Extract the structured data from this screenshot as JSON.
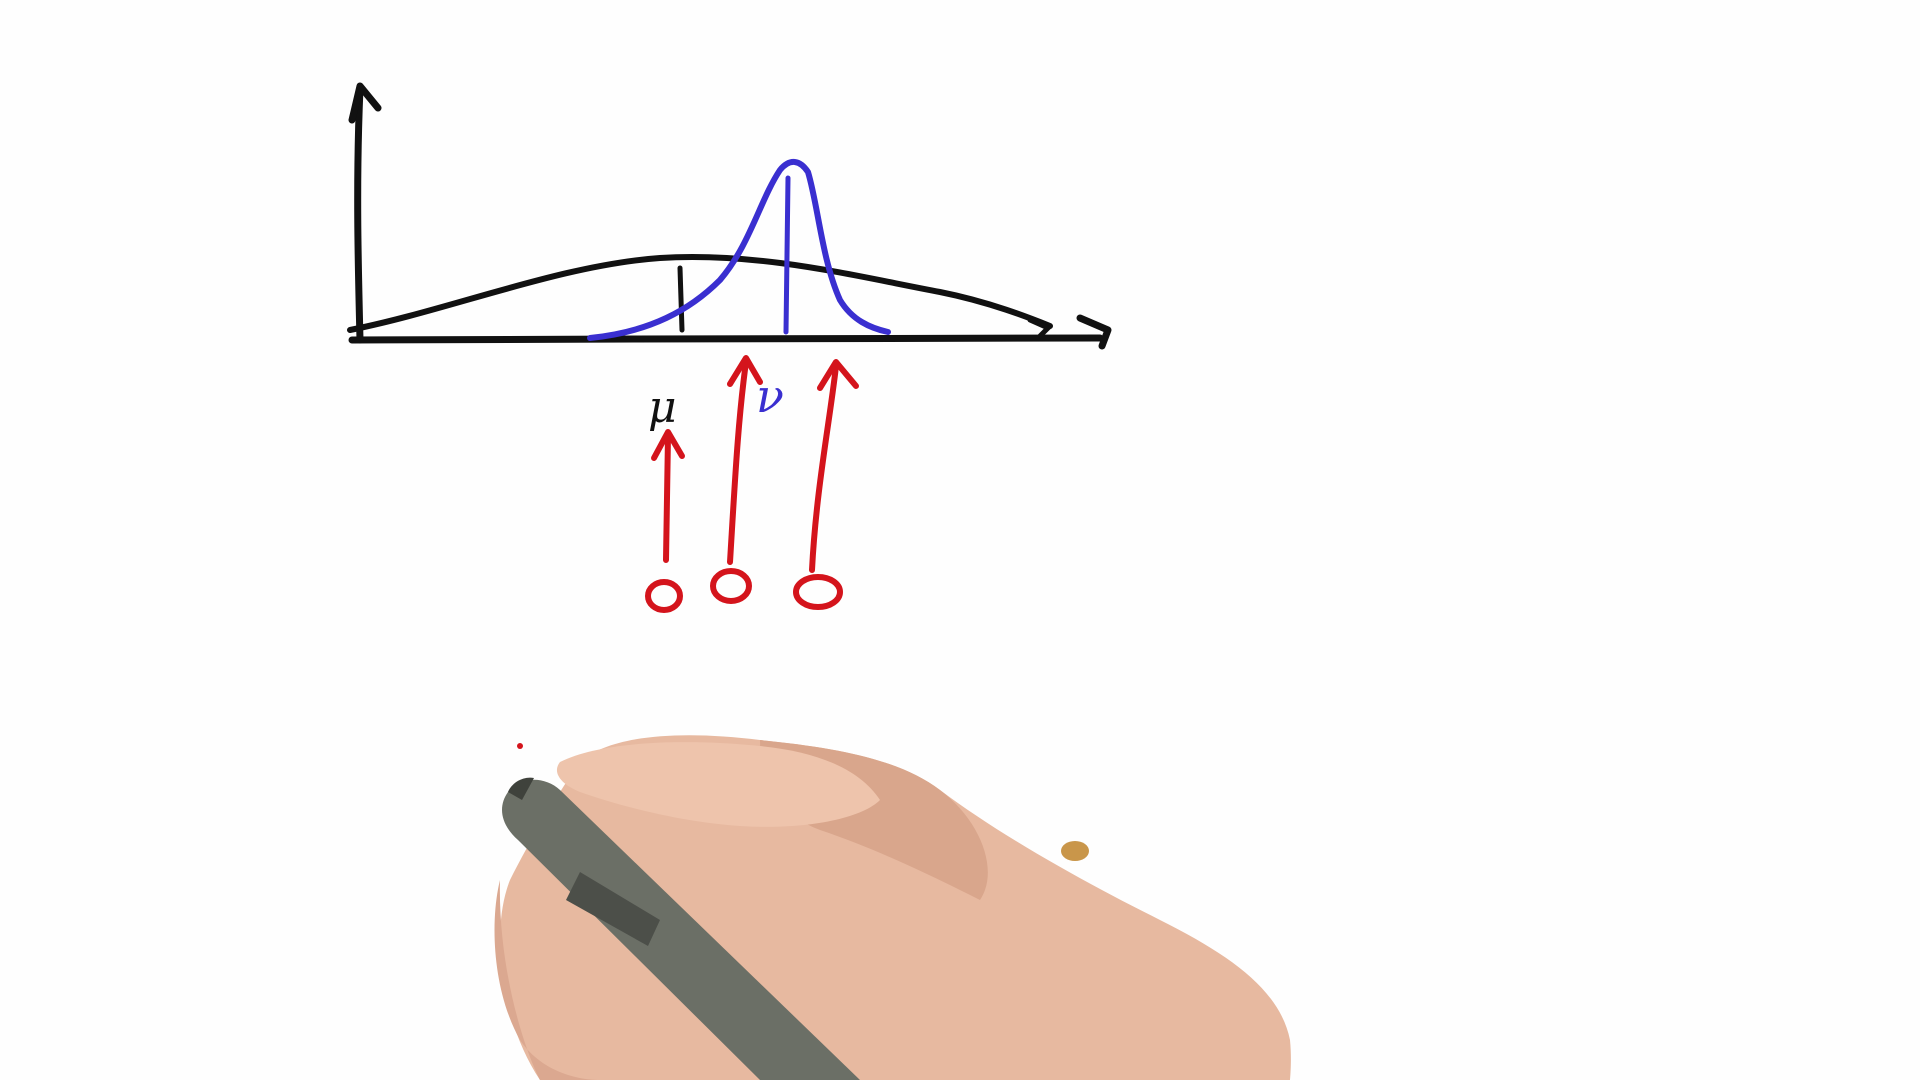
{
  "whiteboard": {
    "labels": {
      "mu": "μ",
      "nu": "ν"
    },
    "colors": {
      "background": "#fefefe",
      "axis_ink": "#111111",
      "prior_curve": "#111111",
      "posterior_curve": "#3a2fd0",
      "observation_ink": "#d4141c",
      "skin": "#e7b9a0",
      "pen_body": "#6b6f66"
    },
    "icons": {
      "hand": "hand-holding-pen",
      "pen": "stylus-pen"
    }
  }
}
